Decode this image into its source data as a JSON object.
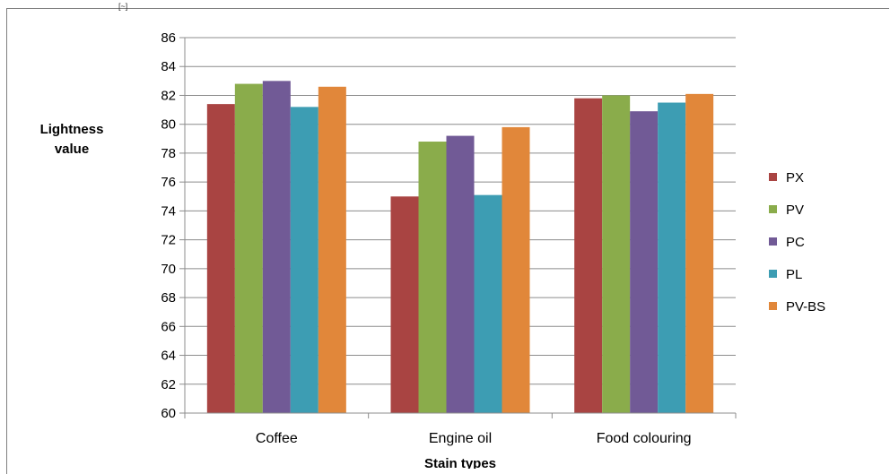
{
  "corner_mark": "[~]",
  "chart_data": {
    "type": "bar",
    "ylabel": [
      "Lightness",
      "value"
    ],
    "xlabel": "Stain types",
    "ylim": [
      60,
      86
    ],
    "ytick_step": 2,
    "yticks": [
      "60",
      "62",
      "64",
      "66",
      "68",
      "70",
      "72",
      "74",
      "76",
      "78",
      "80",
      "82",
      "84",
      "86"
    ],
    "categories": [
      "Coffee",
      "Engine oil",
      "Food colouring"
    ],
    "grid": true,
    "legend_position": "right",
    "series": [
      {
        "name": "PX",
        "color": "#a94442",
        "values": [
          81.4,
          75.0,
          81.8
        ]
      },
      {
        "name": "PV",
        "color": "#8aac4b",
        "values": [
          82.8,
          78.8,
          82.0
        ]
      },
      {
        "name": "PC",
        "color": "#715a96",
        "values": [
          83.0,
          79.2,
          80.9
        ]
      },
      {
        "name": "PL",
        "color": "#3d9db3",
        "values": [
          81.2,
          75.1,
          81.5
        ]
      },
      {
        "name": "PV-BS",
        "color": "#e1873a",
        "values": [
          82.6,
          79.8,
          82.1
        ]
      }
    ]
  }
}
